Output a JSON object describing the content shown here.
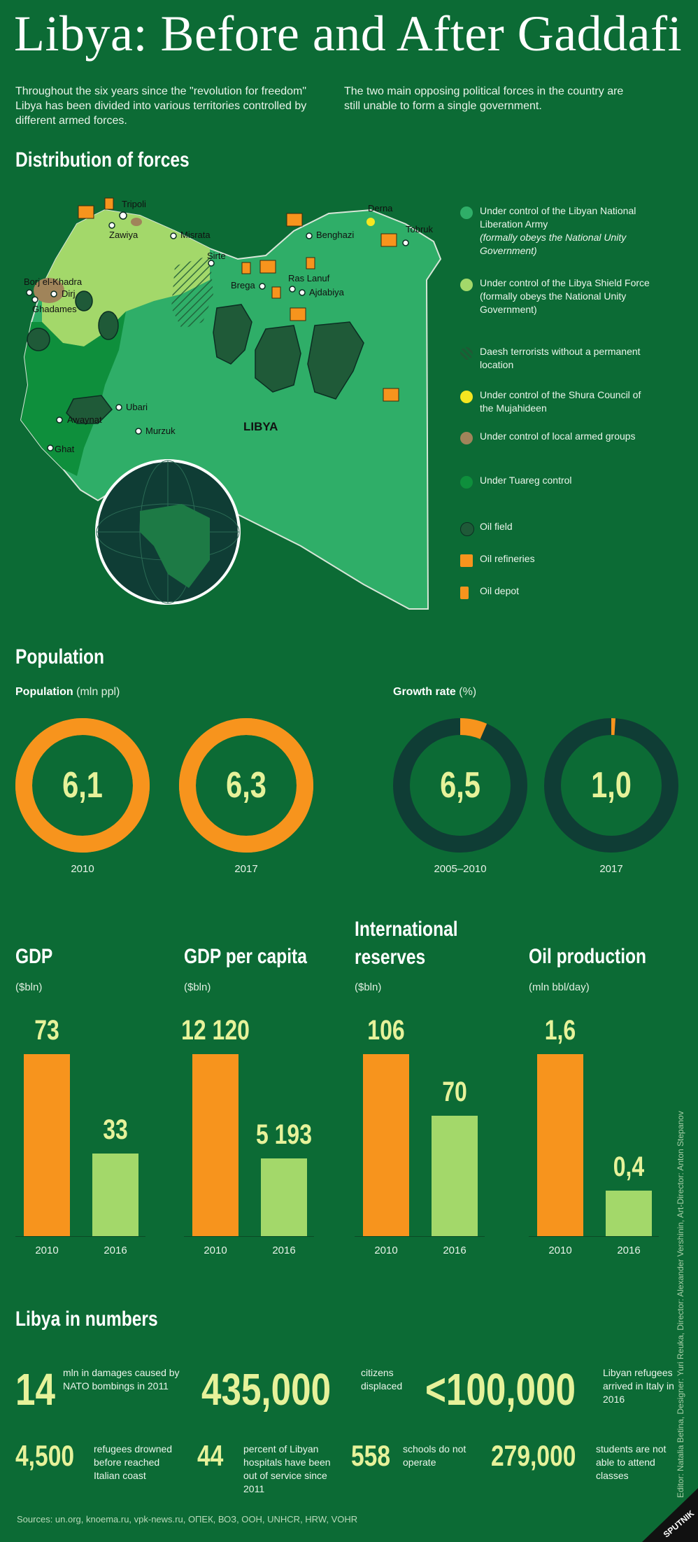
{
  "title": "Libya: Before and After Gaddafi",
  "intro": {
    "left": "Throughout the six years since the \"revolution for freedom\" Libya has been divided into various territories controlled by different armed forces.",
    "right": "The two main opposing political forces in the country are still unable to form a single government."
  },
  "distribution": {
    "heading": "Distribution of forces",
    "map_label": "LIBYA",
    "cities": [
      "Tripoli",
      "Zawiya",
      "Misrata",
      "Sirte",
      "Benghazi",
      "Derna",
      "Tobruk",
      "Brega",
      "Ras Lanuf",
      "Ajdabiya",
      "Borj el-Khadra",
      "Dirj",
      "Ghadames",
      "Ubari",
      "Awaynat",
      "Murzuk",
      "Ghat"
    ],
    "legend": [
      {
        "label": "Under control of the Libyan National Liberation Army",
        "note": "(formally obeys the National Unity Government)",
        "color": "#2fae68"
      },
      {
        "label": "Under control of the Libya Shield Force (formally obeys the National Unity Government)",
        "note": "",
        "color": "#a3d86a"
      },
      {
        "label": "Daesh terrorists without a permanent location",
        "note": "",
        "color": "#1f5a35"
      },
      {
        "label": "Under control of the Shura Council of the Mujahideen",
        "note": "",
        "color": "#f5e620"
      },
      {
        "label": "Under control of local armed groups",
        "note": "",
        "color": "#a0845a"
      },
      {
        "label": "Under Tuareg control",
        "note": "",
        "color": "#0e8f3c"
      },
      {
        "label": "Oil field",
        "note": "",
        "color": "#1f5a38"
      },
      {
        "label": "Oil refineries",
        "note": "",
        "color": "#f7941d"
      },
      {
        "label": "Oil depot",
        "note": "",
        "color": "#f7941d"
      }
    ]
  },
  "population": {
    "heading": "Population",
    "pop_label": "Population",
    "pop_unit": "(mln ppl)",
    "growth_label": "Growth rate",
    "growth_unit": "(%)"
  },
  "chart_data": [
    {
      "type": "pie",
      "name": "Population",
      "categories": [
        "2010",
        "2017"
      ],
      "values": [
        6.1,
        6.3
      ],
      "value_labels": [
        "6,1",
        "6,3"
      ],
      "unit": "mln ppl",
      "fill": [
        1,
        1
      ]
    },
    {
      "type": "pie",
      "name": "Growth rate",
      "categories": [
        "2005–2010",
        "2017"
      ],
      "values": [
        6.5,
        1.0
      ],
      "value_labels": [
        "6,5",
        "1,0"
      ],
      "unit": "%",
      "fill": [
        0.065,
        0.01
      ]
    },
    {
      "type": "bar",
      "title": "GDP",
      "ylabel": "($bln)",
      "categories": [
        "2010",
        "2016"
      ],
      "values": [
        73,
        33
      ],
      "value_labels": [
        "73",
        "33"
      ]
    },
    {
      "type": "bar",
      "title": "GDP per capita",
      "ylabel": "($bln)",
      "categories": [
        "2010",
        "2016"
      ],
      "values": [
        12120,
        5193
      ],
      "value_labels": [
        "12 120",
        "5 193"
      ]
    },
    {
      "type": "bar",
      "title": "International reserves",
      "ylabel": "($bln)",
      "categories": [
        "2010",
        "2016"
      ],
      "values": [
        106,
        70
      ],
      "value_labels": [
        "106",
        "70"
      ]
    },
    {
      "type": "bar",
      "title": "Oil production",
      "ylabel": "(mln bbl/day)",
      "categories": [
        "2010",
        "2016"
      ],
      "values": [
        1.6,
        0.4
      ],
      "value_labels": [
        "1,6",
        "0,4"
      ]
    }
  ],
  "colors": {
    "bg": "#0c6b35",
    "orange": "#f7941d",
    "lightgreen": "#a3d86a",
    "dark": "#0f3d35",
    "numbers": "#e6f29a"
  },
  "numbers": {
    "heading": "Libya in numbers",
    "items": [
      {
        "value": "14",
        "desc": "mln in damages caused by NATO bombings in 2011"
      },
      {
        "value": "435,000",
        "desc": "citizens displaced"
      },
      {
        "value": "<100,000",
        "desc": "Libyan refugees arrived in Italy in 2016"
      },
      {
        "value": "4,500",
        "desc": "refugees drowned before reached Italian coast"
      },
      {
        "value": "44",
        "desc": "percent of Libyan hospitals have been out of service since 2011"
      },
      {
        "value": "558",
        "desc": "schools do not operate"
      },
      {
        "value": "279,000",
        "desc": "students are not able to attend classes"
      }
    ]
  },
  "sources": "Sources: un.org, knoema.ru, vpk-news.ru, ОПЕК, ВОЗ, ООН, UNHCR, HRW, VOHR",
  "credits": "Editor: Natalia Betina, Designer: Yuri Reuka, Director: Alexander Vershinin, Art-Director: Anton Stepanov",
  "brand": "SPUTNIK"
}
